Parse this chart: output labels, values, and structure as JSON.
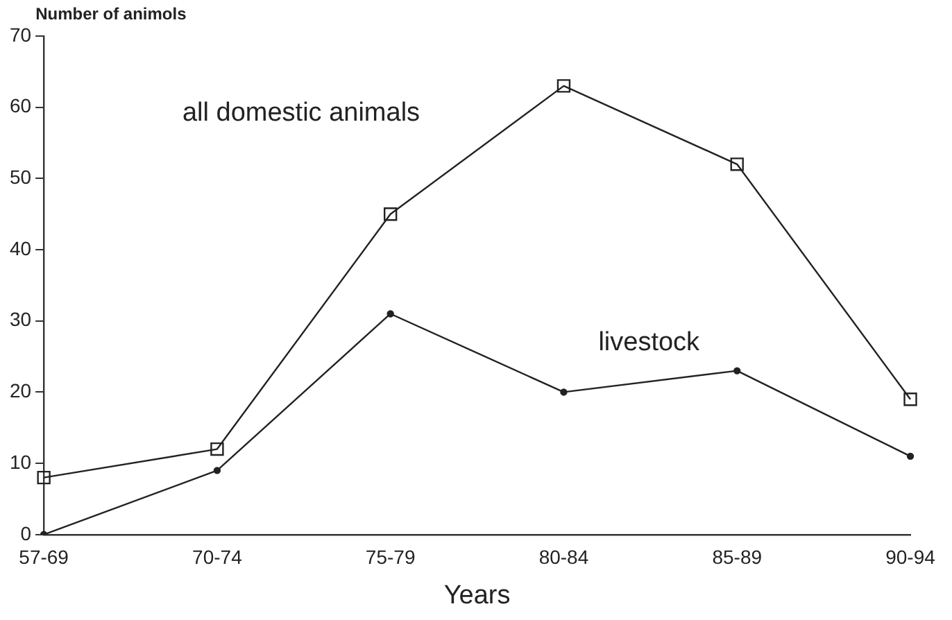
{
  "chart_data": {
    "type": "line",
    "ylabel": "Number of animols",
    "xlabel": "Years",
    "categories": [
      "57-69",
      "70-74",
      "75-79",
      "80-84",
      "85-89",
      "90-94"
    ],
    "series": [
      {
        "name": "all domestic animals",
        "color": "#222222",
        "marker": "square",
        "values": [
          8,
          12,
          45,
          63,
          52,
          19
        ]
      },
      {
        "name": "livestock",
        "color": "#222222",
        "marker": "circle",
        "values": [
          0,
          9,
          31,
          20,
          23,
          11
        ]
      }
    ],
    "ylim": [
      0,
      70
    ],
    "yticks": [
      0,
      10,
      20,
      30,
      40,
      50,
      60,
      70
    ],
    "grid": false,
    "legend": false
  }
}
